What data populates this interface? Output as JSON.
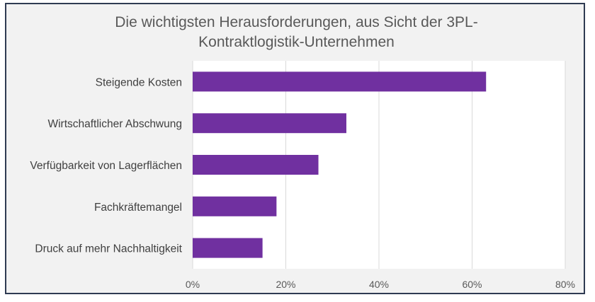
{
  "chart_data": {
    "type": "bar",
    "orientation": "horizontal",
    "title_lines": [
      "Die wichtigsten Herausforderungen, aus Sicht der 3PL-",
      "Kontraktlogistik-Unternehmen"
    ],
    "categories": [
      "Steigende Kosten",
      "Wirtschaftlicher Abschwung",
      "Verfügbarkeit von Lagerflächen",
      "Fachkräftemangel",
      "Druck auf mehr Nachhaltigkeit"
    ],
    "values": [
      63,
      33,
      27,
      18,
      15
    ],
    "value_unit": "%",
    "xlim": [
      0,
      80
    ],
    "xticks": [
      0,
      20,
      40,
      60,
      80
    ],
    "xtick_labels": [
      "0%",
      "20%",
      "40%",
      "60%",
      "80%"
    ],
    "grid": true,
    "legend": "none",
    "colors": {
      "bar": "#7030a0",
      "grid": "#d9d9d9",
      "plot_bg": "#ffffff",
      "frame": "#2f3b52"
    }
  }
}
